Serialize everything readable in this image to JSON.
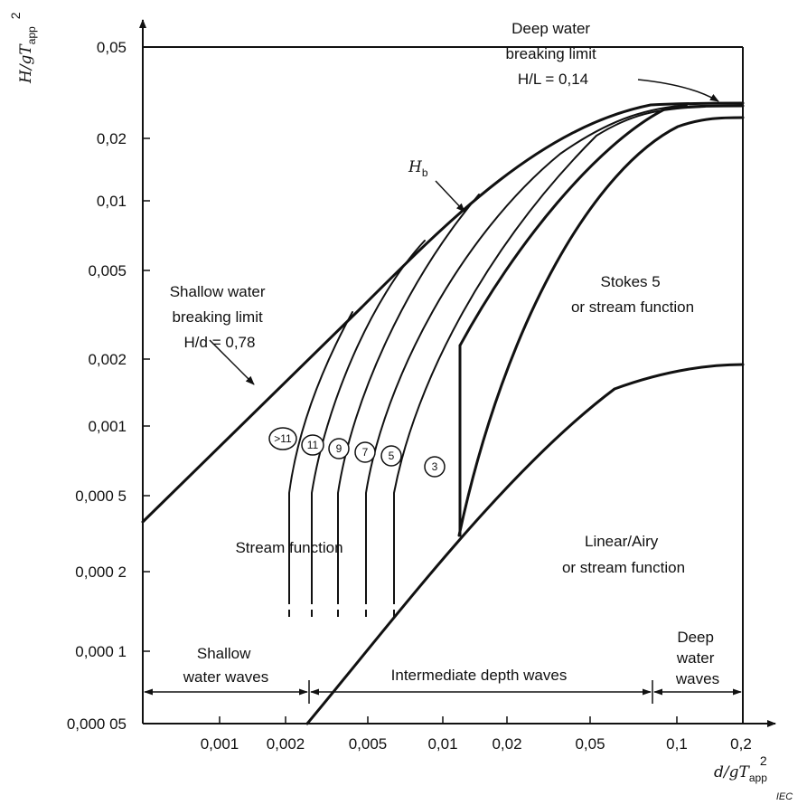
{
  "axes": {
    "y_title": {
      "main": "H/gT",
      "sub": "app",
      "sup": "2"
    },
    "x_title": {
      "main": "d/gT",
      "sub": "app",
      "sup": "2"
    },
    "y_ticks": [
      "0,05",
      "0,02",
      "0,01",
      "0,005",
      "0,002",
      "0,001",
      "0,000 5",
      "0,000 2",
      "0,000 1",
      "0,000 05"
    ],
    "x_ticks": [
      "0,001",
      "0,002",
      "0,005",
      "0,01",
      "0,02",
      "0,05",
      "0,1",
      "0,2"
    ],
    "x_scale": "log",
    "y_scale": "log"
  },
  "regions": {
    "deep_limit": [
      "Deep water",
      "breaking limit",
      "H/L = 0,14"
    ],
    "hb": {
      "main": "H",
      "sub": "b"
    },
    "stokes": [
      "Stokes 5",
      "or stream function"
    ],
    "shallow_limit": [
      "Shallow water",
      "breaking limit",
      "H/d = 0,78"
    ],
    "stream": "Stream function",
    "linear": [
      "Linear/Airy",
      "or stream function"
    ],
    "shallow_waves": [
      "Shallow",
      "water waves"
    ],
    "intermediate_waves": "Intermediate depth waves",
    "deep_waves": [
      "Deep",
      "water",
      "waves"
    ]
  },
  "orders": [
    ">11",
    "11",
    "9",
    "7",
    "5",
    "3"
  ],
  "iec_mark": "IEC"
}
